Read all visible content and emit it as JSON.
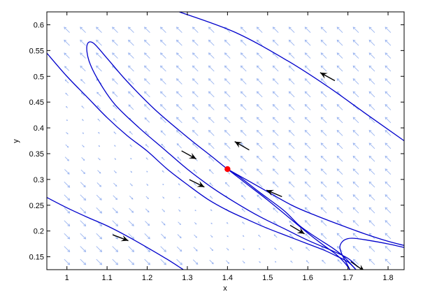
{
  "chart_data": {
    "type": "phase-portrait",
    "title": "",
    "xlabel": "x",
    "ylabel": "y",
    "xlim": [
      0.95,
      1.84
    ],
    "ylim": [
      0.125,
      0.625
    ],
    "xticks": [
      "1",
      "1.1",
      "1.2",
      "1.3",
      "1.4",
      "1.5",
      "1.6",
      "1.7",
      "1.8"
    ],
    "yticks": [
      "0.15",
      "0.2",
      "0.25",
      "0.3",
      "0.35",
      "0.4",
      "0.45",
      "0.5",
      "0.55",
      "0.6"
    ],
    "grid": false,
    "equilibrium": {
      "x": 1.4,
      "y": 0.32
    },
    "colors": {
      "trajectory": "#0000cc",
      "field": "#9bb5f0",
      "equilibrium": "#ff0000",
      "arrow": "#000000"
    },
    "trajectories": [
      {
        "points": [
          [
            1.28,
            0.625
          ],
          [
            1.42,
            0.585
          ],
          [
            1.55,
            0.53
          ],
          [
            1.65,
            0.48
          ],
          [
            1.74,
            0.43
          ],
          [
            1.84,
            0.375
          ]
        ]
      },
      {
        "points": [
          [
            0.95,
            0.545
          ],
          [
            1.0,
            0.5
          ],
          [
            1.05,
            0.46
          ],
          [
            1.1,
            0.42
          ],
          [
            1.15,
            0.385
          ],
          [
            1.2,
            0.355
          ],
          [
            1.25,
            0.32
          ],
          [
            1.3,
            0.29
          ],
          [
            1.35,
            0.262
          ],
          [
            1.4,
            0.24
          ],
          [
            1.45,
            0.222
          ],
          [
            1.5,
            0.205
          ],
          [
            1.55,
            0.19
          ],
          [
            1.6,
            0.175
          ],
          [
            1.64,
            0.163
          ],
          [
            1.67,
            0.152
          ],
          [
            1.7,
            0.14
          ],
          [
            1.72,
            0.125
          ]
        ]
      },
      {
        "points": [
          [
            1.72,
            0.125
          ],
          [
            1.69,
            0.15
          ],
          [
            1.66,
            0.168
          ],
          [
            1.62,
            0.188
          ],
          [
            1.58,
            0.21
          ],
          [
            1.54,
            0.24
          ],
          [
            1.48,
            0.275
          ],
          [
            1.43,
            0.305
          ],
          [
            1.4,
            0.32
          ],
          [
            1.36,
            0.345
          ],
          [
            1.3,
            0.382
          ],
          [
            1.22,
            0.435
          ],
          [
            1.15,
            0.49
          ],
          [
            1.1,
            0.535
          ],
          [
            1.065,
            0.565
          ],
          [
            1.05,
            0.56
          ],
          [
            1.055,
            0.53
          ],
          [
            1.08,
            0.49
          ],
          [
            1.12,
            0.445
          ],
          [
            1.18,
            0.4
          ],
          [
            1.24,
            0.36
          ],
          [
            1.3,
            0.32
          ],
          [
            1.36,
            0.285
          ],
          [
            1.42,
            0.255
          ],
          [
            1.48,
            0.228
          ],
          [
            1.54,
            0.205
          ],
          [
            1.6,
            0.182
          ],
          [
            1.66,
            0.162
          ],
          [
            1.7,
            0.147
          ],
          [
            1.725,
            0.13
          ]
        ]
      },
      {
        "points": [
          [
            0.95,
            0.265
          ],
          [
            1.0,
            0.245
          ],
          [
            1.05,
            0.227
          ],
          [
            1.1,
            0.21
          ],
          [
            1.15,
            0.19
          ],
          [
            1.2,
            0.168
          ],
          [
            1.25,
            0.145
          ],
          [
            1.29,
            0.125
          ]
        ]
      },
      {
        "points": [
          [
            1.4,
            0.32
          ],
          [
            1.48,
            0.285
          ],
          [
            1.56,
            0.25
          ],
          [
            1.62,
            0.23
          ],
          [
            1.68,
            0.212
          ],
          [
            1.74,
            0.195
          ],
          [
            1.8,
            0.18
          ],
          [
            1.84,
            0.172
          ]
        ]
      },
      {
        "points": [
          [
            1.4,
            0.32
          ],
          [
            1.45,
            0.29
          ],
          [
            1.5,
            0.26
          ],
          [
            1.55,
            0.228
          ],
          [
            1.6,
            0.196
          ],
          [
            1.64,
            0.172
          ],
          [
            1.67,
            0.155
          ],
          [
            1.69,
            0.14
          ],
          [
            1.705,
            0.125
          ]
        ]
      },
      {
        "points": [
          [
            1.84,
            0.168
          ],
          [
            1.8,
            0.175
          ],
          [
            1.75,
            0.182
          ],
          [
            1.71,
            0.186
          ],
          [
            1.69,
            0.182
          ],
          [
            1.68,
            0.17
          ],
          [
            1.685,
            0.155
          ],
          [
            1.695,
            0.14
          ],
          [
            1.705,
            0.125
          ]
        ]
      }
    ],
    "direction_arrows": [
      {
        "x": 1.643,
        "y": 0.502,
        "dx": -1,
        "dy": 0.55
      },
      {
        "x": 1.43,
        "y": 0.368,
        "dx": -1,
        "dy": 0.58
      },
      {
        "x": 1.31,
        "y": 0.345,
        "dx": 1,
        "dy": -0.55
      },
      {
        "x": 1.33,
        "y": 0.29,
        "dx": 1,
        "dy": -0.5
      },
      {
        "x": 1.58,
        "y": 0.2,
        "dx": 1,
        "dy": -0.6
      },
      {
        "x": 1.51,
        "y": 0.275,
        "dx": -1,
        "dy": 0.42
      },
      {
        "x": 1.14,
        "y": 0.185,
        "dx": 1,
        "dy": -0.38
      },
      {
        "x": 1.73,
        "y": 0.128,
        "dx": 1,
        "dy": -0.7
      }
    ]
  }
}
